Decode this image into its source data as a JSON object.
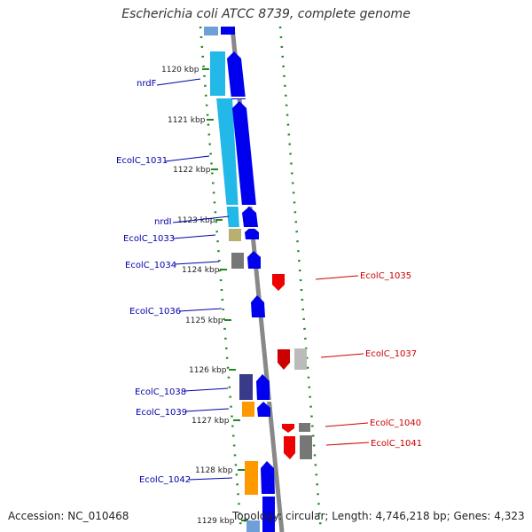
{
  "title": "Escherichia coli ATCC 8739, complete genome",
  "accession": "Accession: NC_010468",
  "summary": "Topology: circular; Length: 4,746,218 bp; Genes: 4,323",
  "colors": {
    "backbone": "#808080",
    "forward_label": "#0000aa",
    "reverse_label": "#cc0000",
    "gc_dots": "#228822",
    "cds_forward": "#0000ee",
    "cds_reverse": "#ff0000",
    "rna_cyan": "#22b8e8",
    "orange": "#ff9900",
    "olive": "#b8b070",
    "navy": "#3a3a8a",
    "gray": "#777777"
  },
  "ticks": [
    "1120 kbp",
    "1121 kbp",
    "1122 kbp",
    "1123 kbp",
    "1124 kbp",
    "1125 kbp",
    "1126 kbp",
    "1127 kbp",
    "1128 kbp",
    "1129 kbp"
  ],
  "forward_labels": [
    "nrdF",
    "EcolC_1031",
    "nrdI",
    "EcolC_1033",
    "EcolC_1034",
    "EcolC_1036",
    "EcolC_1038",
    "EcolC_1039",
    "EcolC_1042"
  ],
  "reverse_labels": [
    "EcolC_1035",
    "EcolC_1037",
    "EcolC_1040",
    "EcolC_1041"
  ]
}
